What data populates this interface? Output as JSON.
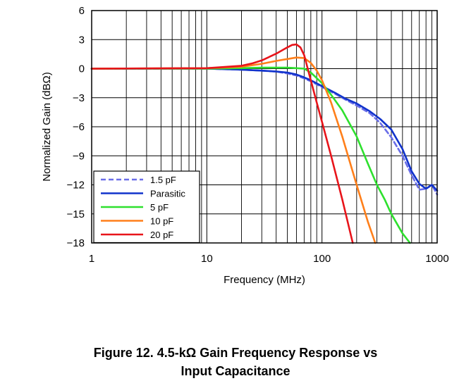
{
  "chart_data": {
    "type": "line",
    "title": "",
    "xlabel": "Frequency (MHz)",
    "ylabel": "Normalized Gain (dBΩ)",
    "xscale": "log",
    "xlim": [
      1,
      1000
    ],
    "ylim": [
      -18,
      6
    ],
    "xticks": [
      1,
      10,
      100,
      1000
    ],
    "xtick_labels": [
      "1",
      "10",
      "100",
      "1000"
    ],
    "yticks": [
      6,
      3,
      0,
      -3,
      -6,
      -9,
      -12,
      -15,
      -18
    ],
    "ytick_labels": [
      "6",
      "3",
      "0",
      "−3",
      "−6",
      "−9",
      "−12",
      "−15",
      "−18"
    ],
    "grid": true,
    "legend_position": "bottom-left",
    "series": [
      {
        "name": "1.5 pF",
        "color": "#6a6ee8",
        "dash": true,
        "x": [
          1,
          5,
          10,
          20,
          30,
          40,
          50,
          60,
          70,
          80,
          100,
          130,
          160,
          200,
          260,
          320,
          400,
          500,
          600,
          700,
          800,
          900,
          1000
        ],
        "y": [
          0,
          0,
          0,
          -0.1,
          -0.2,
          -0.3,
          -0.5,
          -0.7,
          -1.0,
          -1.3,
          -1.9,
          -2.6,
          -3.2,
          -3.8,
          -4.6,
          -5.6,
          -7.1,
          -9.0,
          -11.0,
          -12.5,
          -12.4,
          -12.0,
          -13.0
        ]
      },
      {
        "name": "Parasitic",
        "color": "#1133cc",
        "dash": false,
        "x": [
          1,
          5,
          10,
          20,
          30,
          40,
          50,
          60,
          70,
          80,
          100,
          130,
          160,
          200,
          260,
          320,
          400,
          500,
          600,
          700,
          800,
          900,
          1000
        ],
        "y": [
          0,
          0,
          0,
          -0.1,
          -0.2,
          -0.3,
          -0.4,
          -0.6,
          -0.9,
          -1.2,
          -1.8,
          -2.5,
          -3.1,
          -3.6,
          -4.4,
          -5.2,
          -6.3,
          -8.3,
          -10.6,
          -11.9,
          -12.4,
          -12.0,
          -12.6
        ]
      },
      {
        "name": "5 pF",
        "color": "#2ee02e",
        "dash": false,
        "x": [
          1,
          10,
          20,
          30,
          40,
          50,
          60,
          70,
          80,
          100,
          120,
          150,
          200,
          250,
          300,
          350,
          400,
          500,
          580
        ],
        "y": [
          0,
          0,
          0.05,
          0.1,
          0.1,
          0.1,
          0.05,
          0,
          -0.4,
          -1.5,
          -2.7,
          -4.3,
          -7.0,
          -9.8,
          -12.0,
          -13.5,
          -15.0,
          -17.0,
          -18.0
        ]
      },
      {
        "name": "10 pF",
        "color": "#ff7f1a",
        "dash": false,
        "x": [
          1,
          10,
          20,
          30,
          40,
          50,
          60,
          70,
          80,
          90,
          100,
          120,
          150,
          200,
          250,
          290
        ],
        "y": [
          0,
          0.05,
          0.2,
          0.5,
          0.8,
          1.0,
          1.15,
          1.1,
          0.6,
          -0.2,
          -1.2,
          -3.5,
          -7.0,
          -12.0,
          -15.8,
          -18.0
        ]
      },
      {
        "name": "20 pF",
        "color": "#e8141a",
        "dash": false,
        "x": [
          1,
          10,
          20,
          25,
          30,
          40,
          50,
          55,
          60,
          65,
          70,
          80,
          90,
          100,
          120,
          150,
          185
        ],
        "y": [
          0,
          0.05,
          0.3,
          0.55,
          0.85,
          1.55,
          2.2,
          2.45,
          2.5,
          2.2,
          1.4,
          -1.2,
          -3.5,
          -5.5,
          -9.0,
          -13.5,
          -18.0
        ]
      }
    ]
  },
  "caption": {
    "line1": "Figure 12. 4.5-kΩ Gain Frequency Response vs",
    "line2": "Input Capacitance"
  }
}
